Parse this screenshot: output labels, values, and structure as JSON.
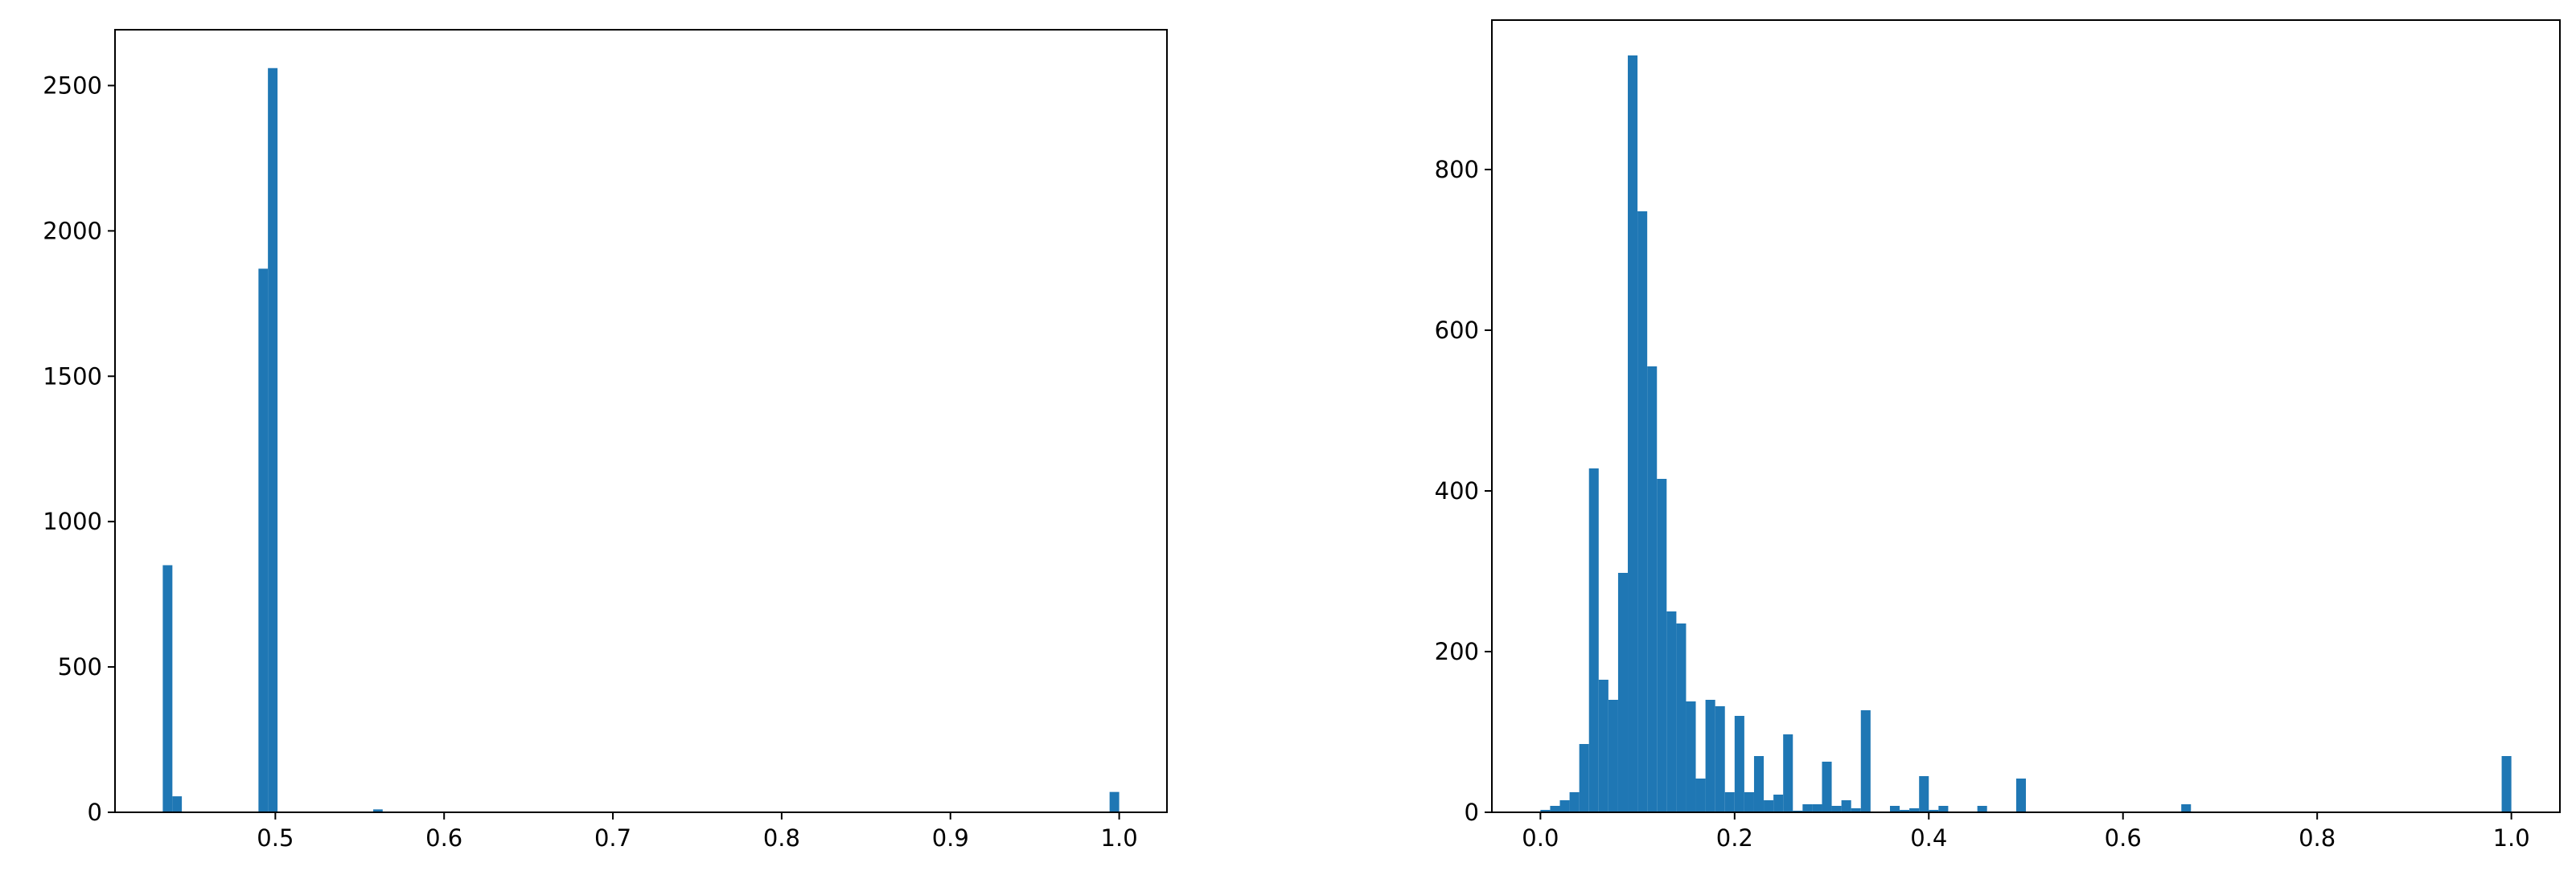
{
  "chart_data": [
    {
      "type": "histogram",
      "color": "#1f77b4",
      "bins": [
        0.4333,
        0.439,
        0.4446,
        0.4503,
        0.456,
        0.4616,
        0.4673,
        0.473,
        0.4786,
        0.4843,
        0.49,
        0.4956,
        0.5013,
        0.507,
        0.5126,
        0.5183,
        0.524,
        0.5296,
        0.5353,
        0.541,
        0.5466,
        0.5523,
        0.558,
        0.5636,
        0.5693,
        0.575,
        0.5806,
        0.5863,
        0.592,
        0.5976,
        0.6033,
        0.609,
        0.6146,
        0.6203,
        0.626,
        0.6316,
        0.6373,
        0.643,
        0.6486,
        0.6543,
        0.66,
        0.6656,
        0.6713,
        0.677,
        0.6826,
        0.6883,
        0.694,
        0.6996,
        0.7053,
        0.711,
        0.7166,
        0.7223,
        0.728,
        0.7336,
        0.7393,
        0.745,
        0.7506,
        0.7563,
        0.762,
        0.7676,
        0.7733,
        0.779,
        0.7846,
        0.7903,
        0.796,
        0.8016,
        0.8073,
        0.813,
        0.8186,
        0.8243,
        0.83,
        0.8356,
        0.8413,
        0.847,
        0.8526,
        0.8583,
        0.864,
        0.8696,
        0.8753,
        0.881,
        0.8866,
        0.8923,
        0.898,
        0.9036,
        0.9093,
        0.915,
        0.9206,
        0.9263,
        0.932,
        0.9376,
        0.9433,
        0.949,
        0.9546,
        0.9603,
        0.966,
        0.9716,
        0.9773,
        0.983,
        0.9886,
        0.9943,
        1.0
      ],
      "values": [
        850,
        55,
        0,
        0,
        0,
        0,
        0,
        0,
        0,
        0,
        1870,
        2560,
        0,
        0,
        0,
        0,
        0,
        0,
        0,
        0,
        0,
        0,
        10,
        0,
        0,
        0,
        0,
        0,
        0,
        0,
        0,
        0,
        0,
        0,
        0,
        0,
        0,
        0,
        0,
        0,
        0,
        0,
        0,
        0,
        0,
        0,
        0,
        0,
        0,
        0,
        0,
        0,
        0,
        0,
        0,
        0,
        0,
        0,
        0,
        0,
        0,
        0,
        0,
        0,
        0,
        0,
        0,
        0,
        0,
        0,
        0,
        0,
        0,
        0,
        0,
        0,
        0,
        0,
        0,
        0,
        0,
        0,
        0,
        0,
        0,
        0,
        0,
        0,
        0,
        0,
        0,
        0,
        0,
        0,
        0,
        0,
        0,
        0,
        0,
        70
      ],
      "xlim": [
        0.405,
        1.0283
      ],
      "ylim": [
        0,
        2692
      ],
      "xticks": [
        0.5,
        0.6,
        0.7,
        0.8,
        0.9,
        {
          "value": 1,
          "label": "1.0"
        }
      ],
      "yticks": [
        0,
        500,
        1000,
        1500,
        2000,
        2500
      ]
    },
    {
      "type": "histogram",
      "color": "#1f77b4",
      "bins": [
        0,
        0.01,
        0.02,
        0.03,
        0.04,
        0.05,
        0.06,
        0.07,
        0.08,
        0.09,
        0.1,
        0.11,
        0.12,
        0.13,
        0.14,
        0.15,
        0.16,
        0.17,
        0.18,
        0.19,
        0.2,
        0.21,
        0.22,
        0.23,
        0.24,
        0.25,
        0.26,
        0.27,
        0.28,
        0.29,
        0.3,
        0.31,
        0.32,
        0.33,
        0.34,
        0.35,
        0.36,
        0.37,
        0.38,
        0.39,
        0.4,
        0.41,
        0.42,
        0.43,
        0.44,
        0.45,
        0.46,
        0.47,
        0.48,
        0.49,
        0.5,
        0.51,
        0.52,
        0.53,
        0.54,
        0.55,
        0.56,
        0.57,
        0.58,
        0.59,
        0.6,
        0.61,
        0.62,
        0.63,
        0.64,
        0.65,
        0.66,
        0.67,
        0.68,
        0.69,
        0.7,
        0.71,
        0.72,
        0.73,
        0.74,
        0.75,
        0.76,
        0.77,
        0.78,
        0.79,
        0.8,
        0.81,
        0.82,
        0.83,
        0.84,
        0.85,
        0.86,
        0.87,
        0.88,
        0.89,
        0.9,
        0.91,
        0.92,
        0.93,
        0.94,
        0.95,
        0.96,
        0.97,
        0.98,
        0.99,
        1
      ],
      "values": [
        3,
        8,
        15,
        25,
        85,
        428,
        165,
        140,
        298,
        942,
        748,
        555,
        415,
        250,
        235,
        138,
        42,
        140,
        132,
        25,
        120,
        25,
        70,
        15,
        22,
        97,
        2,
        10,
        10,
        63,
        8,
        15,
        5,
        127,
        0,
        0,
        8,
        3,
        5,
        45,
        3,
        8,
        0,
        0,
        0,
        8,
        0,
        0,
        0,
        42,
        0,
        0,
        0,
        0,
        0,
        0,
        0,
        0,
        0,
        0,
        0,
        0,
        0,
        0,
        0,
        0,
        10,
        0,
        0,
        0,
        0,
        0,
        0,
        0,
        0,
        0,
        0,
        0,
        0,
        0,
        0,
        0,
        0,
        0,
        0,
        0,
        0,
        0,
        0,
        0,
        0,
        0,
        0,
        0,
        0,
        0,
        0,
        0,
        0,
        70
      ],
      "xlim": [
        -0.05,
        1.05
      ],
      "ylim": [
        0,
        986
      ],
      "xticks": [
        {
          "value": 0,
          "label": "0.0"
        },
        0.2,
        0.4,
        0.6,
        0.8,
        {
          "value": 1,
          "label": "1.0"
        }
      ],
      "yticks": [
        0,
        200,
        400,
        600,
        800
      ]
    }
  ]
}
